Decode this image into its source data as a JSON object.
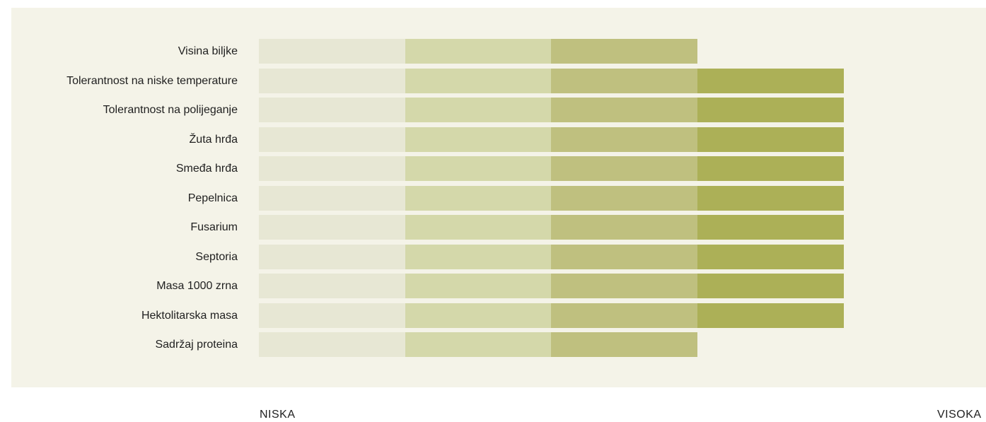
{
  "chart_data": {
    "type": "bar",
    "orientation": "horizontal",
    "categories": [
      "Visina biljke",
      "Tolerantnost na niske temperature",
      "Tolerantnost na polijeganje",
      "Žuta hrđa",
      "Smeđa hrđa",
      "Pepelnica",
      "Fusarium",
      "Septoria",
      "Masa 1000 zrna",
      "Hektolitarska masa",
      "Sadržaj proteina"
    ],
    "values": [
      3,
      4,
      4,
      4,
      4,
      4,
      4,
      4,
      4,
      4,
      3
    ],
    "scale_max": 4,
    "level_colors": [
      "#e7e7d4",
      "#d4d8aa",
      "#bfc07f",
      "#acb057"
    ],
    "panel_color": "#f4f3e8",
    "xaxis": {
      "low_label": "NISKA",
      "high_label": "VISOKA"
    },
    "grid": false,
    "legend": "none"
  }
}
